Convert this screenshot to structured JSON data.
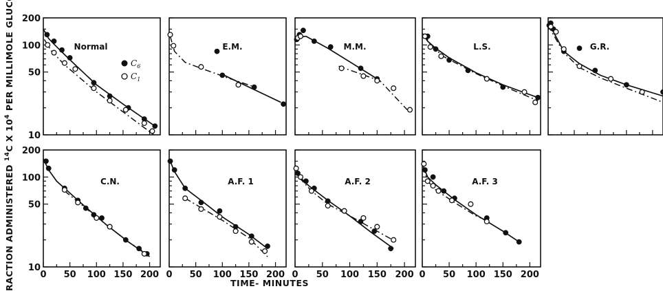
{
  "figure": {
    "ylabel": "FRACTION ADMINISTERED ",
    "ylabel_sup": "14",
    "ylabel_mid": "C X 10",
    "ylabel_sup2": "4",
    "ylabel_end": " PER MILLIMOLE GLUCOSE",
    "xlabel": "TIME- MINUTES",
    "legend": {
      "c6": "C",
      "c6_sub": "6",
      "c1": "C",
      "c1_sub": "1"
    }
  },
  "chart_data": [
    {
      "type": "line",
      "title": "Normal",
      "yscale": "log",
      "ylim": [
        10,
        200
      ],
      "xlim": [
        0,
        220
      ],
      "yticks": [
        "200",
        "100",
        "50",
        "10"
      ],
      "xticks": [],
      "series": [
        {
          "name": "C6",
          "marker": "filled",
          "style": "solid",
          "x": [
            7,
            20,
            35,
            50,
            95,
            125,
            160,
            190,
            210
          ],
          "y": [
            130,
            110,
            88,
            72,
            38,
            27,
            20,
            15,
            12.5
          ],
          "curve": [
            [
              0,
              150
            ],
            [
              10,
              118
            ],
            [
              20,
              102
            ],
            [
              40,
              78
            ],
            [
              60,
              60
            ],
            [
              100,
              36
            ],
            [
              150,
              22
            ],
            [
              210,
              12.5
            ]
          ]
        },
        {
          "name": "C1",
          "marker": "open",
          "style": "dashed",
          "x": [
            8,
            20,
            40,
            60,
            95,
            125,
            155,
            190,
            205
          ],
          "y": [
            100,
            82,
            63,
            54,
            33,
            24,
            19,
            13.5,
            11
          ],
          "curve": [
            [
              2,
              115
            ],
            [
              15,
              86
            ],
            [
              40,
              60
            ],
            [
              100,
              30
            ],
            [
              150,
              18
            ],
            [
              208,
              10
            ]
          ]
        }
      ]
    },
    {
      "type": "line",
      "title": "E.M.",
      "yscale": "log",
      "ylim": [
        10,
        200
      ],
      "xlim": [
        0,
        220
      ],
      "yticks": [],
      "xticks": [],
      "series": [
        {
          "name": "C6",
          "marker": "filled",
          "style": "solid",
          "x": [
            90,
            100,
            160,
            215
          ],
          "y": [
            85,
            46,
            34,
            22
          ],
          "curve": [
            [
              100,
              47
            ],
            [
              210,
              23
            ]
          ]
        },
        {
          "name": "C1",
          "marker": "open",
          "style": "dashed",
          "x": [
            2,
            8,
            60,
            130
          ],
          "y": [
            130,
            98,
            57,
            36
          ],
          "curve": [
            [
              2,
              125
            ],
            [
              10,
              85
            ],
            [
              30,
              64
            ],
            [
              60,
              55
            ],
            [
              110,
              43
            ],
            [
              155,
              35
            ]
          ]
        }
      ]
    },
    {
      "type": "line",
      "title": "M.M.",
      "yscale": "log",
      "ylim": [
        10,
        200
      ],
      "xlim": [
        0,
        220
      ],
      "yticks": [],
      "xticks": [],
      "series": [
        {
          "name": "C6",
          "marker": "filled",
          "style": "solid",
          "x": [
            3,
            8,
            15,
            35,
            65,
            120,
            150
          ],
          "y": [
            115,
            130,
            145,
            110,
            95,
            55,
            42
          ],
          "curve": [
            [
              0,
              120
            ],
            [
              20,
              125
            ],
            [
              60,
              92
            ],
            [
              150,
              42
            ]
          ]
        },
        {
          "name": "C1",
          "marker": "open",
          "style": "dashed",
          "x": [
            5,
            10,
            85,
            125,
            150,
            180,
            210
          ],
          "y": [
            120,
            125,
            55,
            45,
            40,
            33,
            19
          ],
          "curve": [
            [
              80,
              58
            ],
            [
              155,
              40
            ],
            [
              205,
              19
            ]
          ]
        }
      ]
    },
    {
      "type": "line",
      "title": "L.S.",
      "yscale": "log",
      "ylim": [
        10,
        200
      ],
      "xlim": [
        0,
        220
      ],
      "yticks": [],
      "xticks": [],
      "series": [
        {
          "name": "C6",
          "marker": "filled",
          "style": "solid",
          "x": [
            10,
            25,
            50,
            85,
            150,
            215
          ],
          "y": [
            125,
            90,
            68,
            52,
            34,
            26
          ],
          "curve": [
            [
              0,
              135
            ],
            [
              10,
              110
            ],
            [
              25,
              92
            ],
            [
              50,
              72
            ],
            [
              100,
              49
            ],
            [
              150,
              36
            ],
            [
              215,
              26
            ]
          ]
        },
        {
          "name": "C1",
          "marker": "open",
          "style": "dashed",
          "x": [
            5,
            15,
            35,
            120,
            190,
            210
          ],
          "y": [
            125,
            95,
            75,
            42,
            30,
            23
          ],
          "curve": [
            [
              5,
              130
            ],
            [
              15,
              100
            ],
            [
              40,
              74
            ],
            [
              100,
              48
            ],
            [
              150,
              35
            ],
            [
              215,
              24
            ]
          ]
        }
      ]
    },
    {
      "type": "line",
      "title": "G.R.",
      "yscale": "log",
      "ylim": [
        10,
        200
      ],
      "xlim": [
        0,
        220
      ],
      "yticks": [],
      "xticks": [],
      "series": [
        {
          "name": "C6",
          "marker": "filled",
          "style": "solid",
          "x": [
            2,
            5,
            10,
            30,
            60,
            90,
            150,
            220
          ],
          "y": [
            165,
            175,
            150,
            85,
            92,
            52,
            36,
            30
          ],
          "curve": [
            [
              0,
              170
            ],
            [
              10,
              140
            ],
            [
              30,
              85
            ],
            [
              60,
              62
            ],
            [
              100,
              46
            ],
            [
              150,
              36
            ],
            [
              220,
              27
            ]
          ]
        },
        {
          "name": "C1",
          "marker": "open",
          "style": "dashed",
          "x": [
            5,
            15,
            30,
            60,
            120,
            180
          ],
          "y": [
            160,
            140,
            90,
            58,
            42,
            30
          ],
          "curve": [
            [
              0,
              165
            ],
            [
              10,
              130
            ],
            [
              30,
              82
            ],
            [
              60,
              56
            ],
            [
              100,
              43
            ],
            [
              150,
              33
            ],
            [
              220,
              23
            ]
          ]
        }
      ]
    },
    {
      "type": "line",
      "title": "C.N.",
      "yscale": "log",
      "ylim": [
        10,
        200
      ],
      "xlim": [
        0,
        220
      ],
      "yticks": [
        "200",
        "100",
        "50",
        "10"
      ],
      "xticks": [
        "0",
        "50",
        "100",
        "150",
        "200"
      ],
      "series": [
        {
          "name": "C6",
          "marker": "filled",
          "style": "solid",
          "x": [
            5,
            10,
            40,
            65,
            80,
            95,
            110,
            125,
            155,
            180,
            195
          ],
          "y": [
            150,
            125,
            75,
            55,
            45,
            38,
            35,
            28,
            20,
            16,
            14
          ],
          "curve": [
            [
              0,
              160
            ],
            [
              10,
              120
            ],
            [
              25,
              90
            ],
            [
              40,
              75
            ],
            [
              80,
              46
            ],
            [
              120,
              29
            ],
            [
              160,
              19
            ],
            [
              200,
              13
            ]
          ]
        },
        {
          "name": "C1",
          "marker": "open",
          "style": "dashed",
          "x": [
            40,
            65,
            100,
            125,
            190
          ],
          "y": [
            72,
            52,
            35,
            28,
            14
          ],
          "curve": [
            [
              40,
              70
            ],
            [
              80,
              45
            ],
            [
              120,
              29
            ],
            [
              160,
              19
            ],
            [
              195,
              14
            ]
          ]
        }
      ]
    },
    {
      "type": "line",
      "title": "A.F. 1",
      "yscale": "log",
      "ylim": [
        10,
        200
      ],
      "xlim": [
        0,
        220
      ],
      "yticks": [],
      "xticks": [
        "0",
        "50",
        "100",
        "150",
        "200"
      ],
      "series": [
        {
          "name": "C6",
          "marker": "filled",
          "style": "solid",
          "x": [
            2,
            10,
            30,
            60,
            95,
            125,
            155,
            185
          ],
          "y": [
            150,
            120,
            75,
            52,
            42,
            28,
            22,
            17
          ],
          "curve": [
            [
              0,
              160
            ],
            [
              10,
              115
            ],
            [
              30,
              75
            ],
            [
              60,
              55
            ],
            [
              100,
              36
            ],
            [
              150,
              23
            ],
            [
              185,
              16
            ]
          ]
        },
        {
          "name": "C1",
          "marker": "open",
          "style": "dashed",
          "x": [
            30,
            60,
            95,
            125,
            155,
            180
          ],
          "y": [
            58,
            44,
            36,
            25,
            19,
            15
          ],
          "curve": [
            [
              30,
              58
            ],
            [
              100,
              33
            ],
            [
              150,
              21
            ],
            [
              185,
              13
            ]
          ]
        }
      ]
    },
    {
      "type": "line",
      "title": "A.F. 2",
      "yscale": "log",
      "ylim": [
        10,
        200
      ],
      "xlim": [
        0,
        220
      ],
      "yticks": [],
      "xticks": [
        "0",
        "50",
        "100",
        "150",
        "200"
      ],
      "series": [
        {
          "name": "C6",
          "marker": "filled",
          "style": "solid",
          "x": [
            5,
            20,
            35,
            60,
            90,
            120,
            145,
            175
          ],
          "y": [
            110,
            90,
            75,
            54,
            42,
            32,
            25,
            16
          ],
          "curve": [
            [
              0,
              125
            ],
            [
              10,
              98
            ],
            [
              25,
              80
            ],
            [
              60,
              55
            ],
            [
              100,
              37
            ],
            [
              140,
              24
            ],
            [
              180,
              16
            ]
          ]
        },
        {
          "name": "C1",
          "marker": "open",
          "style": "dashed",
          "x": [
            2,
            10,
            30,
            60,
            90,
            125,
            150,
            180
          ],
          "y": [
            125,
            100,
            70,
            48,
            42,
            35,
            28,
            20
          ],
          "curve": [
            [
              0,
              135
            ],
            [
              10,
              95
            ],
            [
              30,
              70
            ],
            [
              60,
              50
            ],
            [
              100,
              37
            ],
            [
              140,
              27
            ],
            [
              185,
              19
            ]
          ]
        }
      ]
    },
    {
      "type": "line",
      "title": "A.F. 3",
      "yscale": "log",
      "ylim": [
        10,
        200
      ],
      "xlim": [
        0,
        220
      ],
      "yticks": [],
      "xticks": [
        "0",
        "50",
        "100",
        "150",
        "200"
      ],
      "series": [
        {
          "name": "C6",
          "marker": "filled",
          "style": "solid",
          "x": [
            5,
            20,
            40,
            60,
            120,
            155,
            180
          ],
          "y": [
            120,
            100,
            70,
            58,
            35,
            24,
            19
          ],
          "curve": [
            [
              2,
              130
            ],
            [
              10,
              100
            ],
            [
              25,
              82
            ],
            [
              60,
              56
            ],
            [
              100,
              38
            ],
            [
              150,
              25
            ],
            [
              180,
              19
            ]
          ]
        },
        {
          "name": "C1",
          "marker": "open",
          "style": "dashed",
          "x": [
            3,
            10,
            20,
            30,
            55,
            90,
            120
          ],
          "y": [
            140,
            90,
            80,
            70,
            55,
            50,
            32
          ],
          "curve": [
            [
              2,
              130
            ],
            [
              10,
              90
            ],
            [
              25,
              72
            ],
            [
              60,
              52
            ],
            [
              100,
              37
            ],
            [
              125,
              32
            ]
          ]
        }
      ]
    }
  ]
}
